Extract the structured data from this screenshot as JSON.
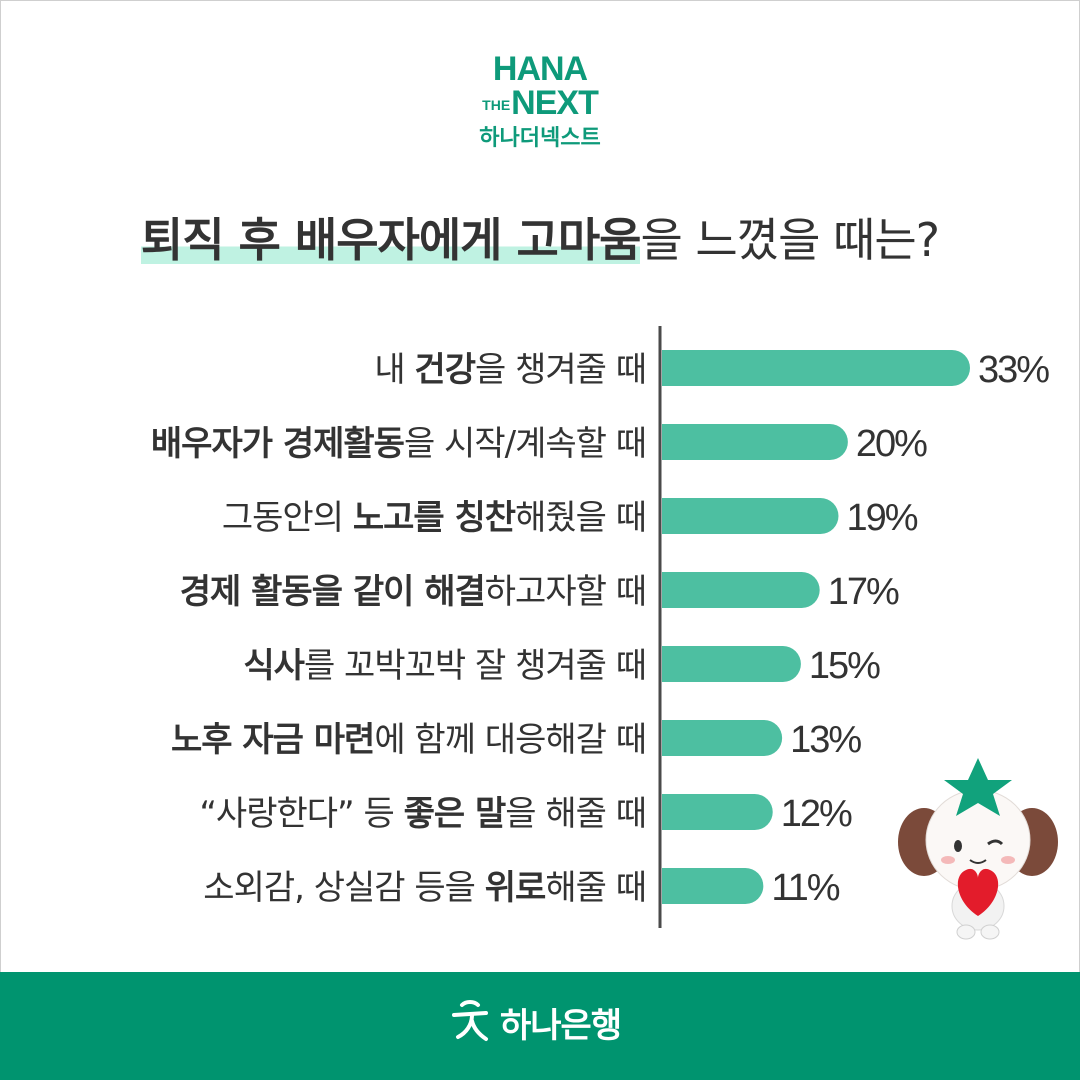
{
  "logo": {
    "line1": "HANA",
    "line2_small": "THE",
    "line2": "NEXT",
    "line3": "하나더넥스트"
  },
  "headline": {
    "highlight": "퇴직 후 배우자에게 고마움",
    "rest": "을 느꼈을 때는?"
  },
  "chart_data": {
    "type": "bar",
    "orientation": "horizontal",
    "categories": [
      [
        {
          "t": "내 ",
          "b": false
        },
        {
          "t": "건강",
          "b": true
        },
        {
          "t": "을 챙겨줄 때",
          "b": false
        }
      ],
      [
        {
          "t": "배우자가 경제활동",
          "b": true
        },
        {
          "t": "을 시작/계속할 때",
          "b": false
        }
      ],
      [
        {
          "t": "그동안의 ",
          "b": false
        },
        {
          "t": "노고를 칭찬",
          "b": true
        },
        {
          "t": "해줬을 때",
          "b": false
        }
      ],
      [
        {
          "t": "경제 활동을 같이 해결",
          "b": true
        },
        {
          "t": "하고자할 때",
          "b": false
        }
      ],
      [
        {
          "t": "식사",
          "b": true
        },
        {
          "t": "를 꼬박꼬박 잘 챙겨줄 때",
          "b": false
        }
      ],
      [
        {
          "t": "노후 자금 마련",
          "b": true
        },
        {
          "t": "에 함께 대응해갈 때",
          "b": false
        }
      ],
      [
        {
          "t": "“사랑한다” 등 ",
          "b": false
        },
        {
          "t": "좋은 말",
          "b": true
        },
        {
          "t": "을 해줄 때",
          "b": false
        }
      ],
      [
        {
          "t": "소외감, 상실감 등을 ",
          "b": false
        },
        {
          "t": "위로",
          "b": true
        },
        {
          "t": "해줄 때",
          "b": false
        }
      ]
    ],
    "values": [
      33,
      20,
      19,
      17,
      15,
      13,
      12,
      11
    ],
    "value_labels": [
      "33%",
      "20%",
      "19%",
      "17%",
      "15%",
      "13%",
      "12%",
      "11%"
    ],
    "unit": "%",
    "bar_color": "#4dbfa1"
  },
  "footer": {
    "brand": "하나은행",
    "background": "#00946f"
  }
}
